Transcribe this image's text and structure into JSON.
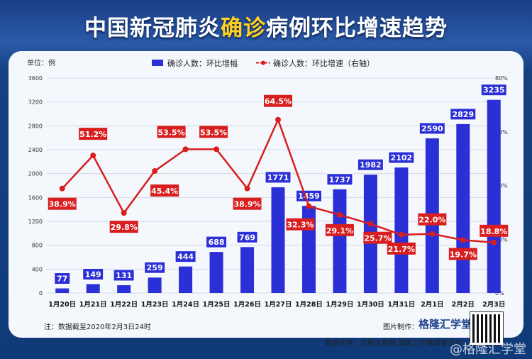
{
  "title_parts": [
    "中国新冠肺炎",
    "确诊",
    "病例环比增速趋势"
  ],
  "unit_label": "单位：例",
  "legend": {
    "bar": "确诊人数：环比增幅",
    "line": "确诊人数：环比增速（右轴）"
  },
  "note": "注：数据截至2020年2月3日24时",
  "credit_label": "图片制作：",
  "credit_brand": "格隆汇学堂",
  "source": "数据支持：勾股大数据 国家卫生健康委员会",
  "watermark": "@格隆汇学堂",
  "chart_data": {
    "type": "bar+line",
    "categories": [
      "1月20日",
      "1月21日",
      "1月22日",
      "1月23日",
      "1月24日",
      "1月25日",
      "1月26日",
      "1月27日",
      "1月28日",
      "1月29日",
      "1月30日",
      "1月31日",
      "2月1日",
      "2月2日",
      "2月3日"
    ],
    "series": [
      {
        "name": "确诊人数：环比增幅",
        "type": "bar",
        "axis": "left",
        "color": "#2b2fd6",
        "values": [
          77,
          149,
          131,
          259,
          444,
          688,
          769,
          1771,
          1459,
          1737,
          1982,
          2102,
          2590,
          2829,
          3235
        ]
      },
      {
        "name": "确诊人数：环比增速（右轴）",
        "type": "line",
        "axis": "right",
        "color": "#d81e1e",
        "values": [
          38.9,
          51.2,
          29.8,
          45.4,
          53.5,
          53.5,
          38.9,
          64.5,
          32.3,
          29.1,
          25.7,
          21.7,
          22.0,
          19.7,
          18.8
        ],
        "labels": [
          "38.9%",
          "51.2%",
          "29.8%",
          "45.4%",
          "53.5%",
          "53.5%",
          "38.9%",
          "64.5%",
          "32.3%",
          "29.1%",
          "25.7%",
          "21.7%",
          "22.0%",
          "19.7%",
          "18.8%"
        ]
      }
    ],
    "yleft": {
      "range": [
        0,
        3600
      ],
      "ticks": [
        "0",
        "400",
        "800",
        "1200",
        "1600",
        "2000",
        "2400",
        "2800",
        "3200",
        "3600"
      ]
    },
    "yright": {
      "range": [
        0,
        80
      ],
      "ticks": [
        "0%",
        "20%",
        "40%",
        "60%",
        "80%"
      ]
    },
    "grid": true,
    "legend_position": "top"
  }
}
